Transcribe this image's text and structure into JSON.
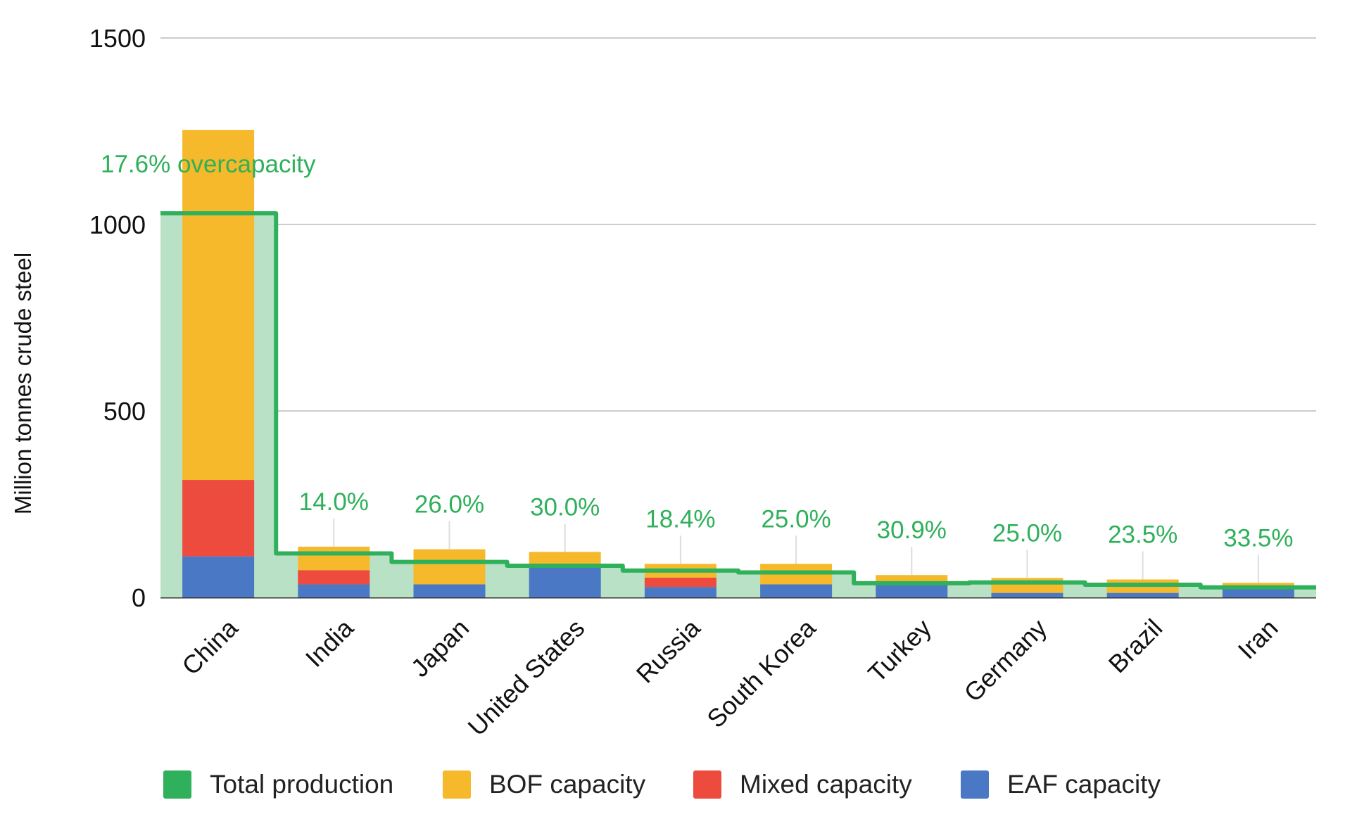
{
  "chart_data": {
    "type": "bar",
    "stacked": true,
    "title": "",
    "xlabel": "",
    "ylabel": "Million tonnes crude steel",
    "ylim": [
      0,
      1500
    ],
    "yticks": [
      "0",
      "500",
      "1000",
      "1500"
    ],
    "grid": true,
    "legend_position": "bottom",
    "categories": [
      "China",
      "India",
      "Japan",
      "United States",
      "Russia",
      "South Korea",
      "Turkey",
      "Germany",
      "Brazil",
      "Iran"
    ],
    "series": [
      {
        "name": "EAF capacity",
        "key": "eaf",
        "color": "#4a78c5",
        "values": [
          110,
          35,
          35,
          80,
          28,
          35,
          35,
          12,
          12,
          22
        ]
      },
      {
        "name": "Mixed capacity",
        "key": "mixed",
        "color": "#ee4b3f",
        "values": [
          205,
          38,
          0,
          0,
          25,
          0,
          0,
          0,
          0,
          0
        ]
      },
      {
        "name": "BOF capacity",
        "key": "bof",
        "color": "#f6b92b",
        "values": [
          938,
          63,
          94,
          42,
          37,
          55,
          25,
          40,
          36,
          17
        ]
      }
    ],
    "total_production": {
      "name": "Total production",
      "type": "step-area",
      "color": "#2fb05a",
      "fill": "#b8e1c5",
      "values": [
        1030,
        118,
        95,
        85,
        72,
        67,
        38,
        40,
        34,
        27
      ]
    },
    "annotations": [
      "17.6% overcapacity",
      "14.0%",
      "26.0%",
      "30.0%",
      "18.4%",
      "25.0%",
      "30.9%",
      "25.0%",
      "23.5%",
      "33.5%"
    ],
    "annotation_color": "#2fb05a",
    "legend": [
      {
        "label": "Total production",
        "color": "#2fb05a"
      },
      {
        "label": "BOF capacity",
        "color": "#f6b92b"
      },
      {
        "label": "Mixed capacity",
        "color": "#ee4b3f"
      },
      {
        "label": "EAF capacity",
        "color": "#4a78c5"
      }
    ]
  }
}
